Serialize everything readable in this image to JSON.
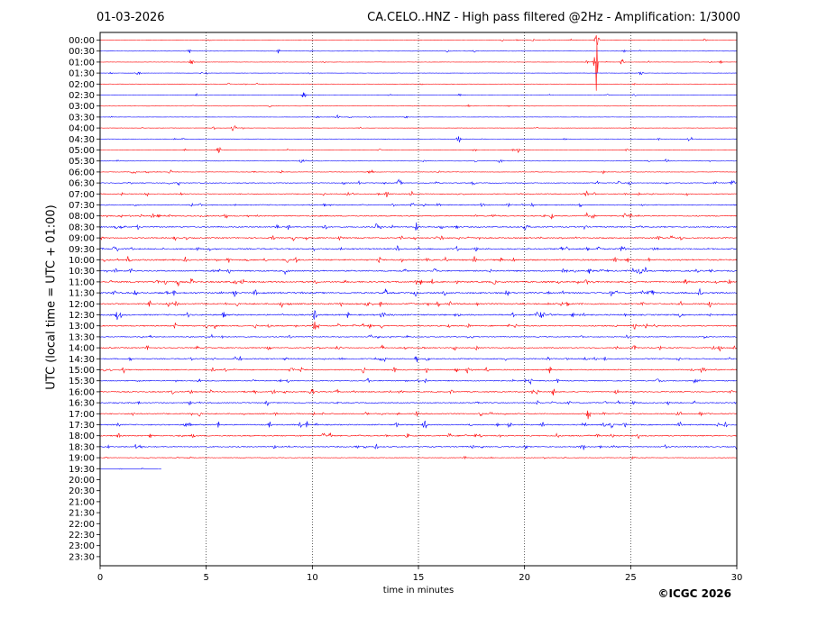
{
  "header": {
    "date": "01-03-2026",
    "title": "CA.CELO..HNZ - High pass filtered @2Hz - Amplification: 1/3000"
  },
  "footer": {
    "copyright": "©ICGC 2026"
  },
  "chart_data": {
    "type": "line",
    "title": "CA.CELO..HNZ - High pass filtered @2Hz - Amplification: 1/3000",
    "xlabel": "time in minutes",
    "ylabel": "UTC (local time = UTC + 01:00)",
    "xlim": [
      0,
      30
    ],
    "xticks": [
      0,
      5,
      10,
      15,
      20,
      25,
      30
    ],
    "vertical_grid": [
      5,
      10,
      15,
      20,
      25
    ],
    "row_labels": [
      "00:00",
      "00:30",
      "01:00",
      "01:30",
      "02:00",
      "02:30",
      "03:00",
      "03:30",
      "04:00",
      "04:30",
      "05:00",
      "05:30",
      "06:00",
      "06:30",
      "07:00",
      "07:30",
      "08:00",
      "08:30",
      "09:00",
      "09:30",
      "10:00",
      "10:30",
      "11:00",
      "11:30",
      "12:00",
      "12:30",
      "13:00",
      "13:30",
      "14:00",
      "14:30",
      "15:00",
      "15:30",
      "16:00",
      "16:30",
      "17:00",
      "17:30",
      "18:00",
      "18:30",
      "19:00",
      "19:30",
      "20:00",
      "20:30",
      "21:00",
      "21:30",
      "22:00",
      "22:30",
      "23:00",
      "23:30"
    ],
    "series_colors": [
      "#ff0000",
      "#0000ff"
    ],
    "trace_end_minutes": [
      30,
      30,
      30,
      30,
      30,
      30,
      30,
      30,
      30,
      30,
      30,
      30,
      30,
      30,
      30,
      30,
      30,
      30,
      30,
      30,
      30,
      30,
      30,
      30,
      30,
      30,
      30,
      30,
      30,
      30,
      30,
      30,
      30,
      30,
      30,
      30,
      30,
      30,
      30,
      2.9,
      0,
      0,
      0,
      0,
      0,
      0,
      0,
      0
    ],
    "noise_level": [
      0.15,
      0.15,
      0.15,
      0.15,
      0.15,
      0.15,
      0.12,
      0.12,
      0.15,
      0.15,
      0.18,
      0.2,
      0.25,
      0.4,
      0.45,
      0.5,
      0.55,
      0.6,
      0.6,
      0.65,
      0.7,
      0.7,
      0.75,
      0.75,
      0.7,
      0.7,
      0.6,
      0.45,
      0.5,
      0.55,
      0.55,
      0.5,
      0.55,
      0.5,
      0.55,
      0.6,
      0.6,
      0.55,
      0.3,
      0.05,
      0,
      0,
      0,
      0,
      0,
      0,
      0,
      0
    ],
    "events": [
      {
        "row": 0,
        "minute": 28.5,
        "amp": 2
      },
      {
        "row": 0,
        "minute": 23.4,
        "amp": 8
      },
      {
        "row": 1,
        "minute": 4.2,
        "amp": 3
      },
      {
        "row": 1,
        "minute": 8.4,
        "amp": 3
      },
      {
        "row": 2,
        "minute": 4.3,
        "amp": 4
      },
      {
        "row": 2,
        "minute": 23.3,
        "amp": 6
      },
      {
        "row": 2,
        "minute": 23.4,
        "amp": 60
      },
      {
        "row": 2,
        "minute": 24.6,
        "amp": 4
      },
      {
        "row": 3,
        "minute": 25.5,
        "amp": 3
      },
      {
        "row": 5,
        "minute": 9.6,
        "amp": 4
      },
      {
        "row": 7,
        "minute": 11.2,
        "amp": 3
      },
      {
        "row": 8,
        "minute": 6.3,
        "amp": 5
      },
      {
        "row": 9,
        "minute": 16.9,
        "amp": 4
      },
      {
        "row": 9,
        "minute": 27.8,
        "amp": 4
      },
      {
        "row": 10,
        "minute": 5.6,
        "amp": 4
      },
      {
        "row": 10,
        "minute": 19.7,
        "amp": 3
      },
      {
        "row": 11,
        "minute": 9.5,
        "amp": 3
      },
      {
        "row": 11,
        "minute": 26.7,
        "amp": 3
      },
      {
        "row": 12,
        "minute": 1.6,
        "amp": 4
      },
      {
        "row": 12,
        "minute": 3.3,
        "amp": 3
      },
      {
        "row": 13,
        "minute": 14.1,
        "amp": 5
      },
      {
        "row": 13,
        "minute": 29.8,
        "amp": 4
      },
      {
        "row": 14,
        "minute": 13.5,
        "amp": 4
      },
      {
        "row": 14,
        "minute": 22.9,
        "amp": 4
      },
      {
        "row": 17,
        "minute": 14.9,
        "amp": 5
      },
      {
        "row": 25,
        "minute": 0.8,
        "amp": 6
      },
      {
        "row": 25,
        "minute": 10.1,
        "amp": 7
      },
      {
        "row": 26,
        "minute": 10.1,
        "amp": 6
      },
      {
        "row": 29,
        "minute": 14.9,
        "amp": 5
      },
      {
        "row": 30,
        "minute": 28.4,
        "amp": 8
      },
      {
        "row": 30,
        "minute": 21.2,
        "amp": 5
      },
      {
        "row": 32,
        "minute": 21.4,
        "amp": 7
      },
      {
        "row": 34,
        "minute": 23.0,
        "amp": 7
      },
      {
        "row": 35,
        "minute": 15.3,
        "amp": 6
      },
      {
        "row": 35,
        "minute": 24.1,
        "amp": 4
      }
    ]
  }
}
